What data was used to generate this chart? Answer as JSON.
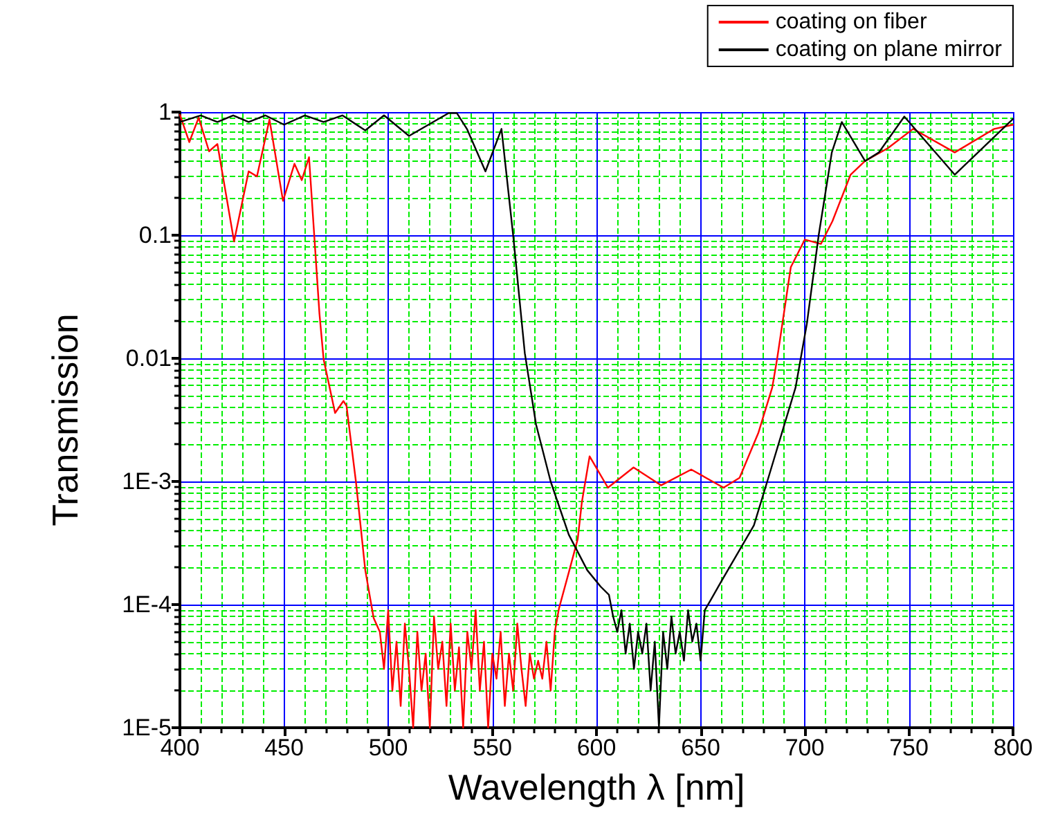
{
  "chart_data": {
    "type": "line",
    "xlabel": "Wavelength λ [nm]",
    "ylabel": "Transmission",
    "log": "y",
    "grid": true,
    "legend": "top right",
    "marker": "none",
    "line_style": "solid",
    "xlim": [
      400,
      800
    ],
    "xticks": [
      400,
      {
        "value": 410,
        "label": null
      },
      {
        "value": 420,
        "label": null
      },
      {
        "value": 430,
        "label": null
      },
      {
        "value": 440,
        "label": null
      },
      450,
      {
        "value": 460,
        "label": null
      },
      {
        "value": 470,
        "label": null
      },
      {
        "value": 480,
        "label": null
      },
      {
        "value": 490,
        "label": null
      },
      500,
      {
        "value": 510,
        "label": null
      },
      {
        "value": 520,
        "label": null
      },
      {
        "value": 530,
        "label": null
      },
      {
        "value": 540,
        "label": null
      },
      550,
      {
        "value": 560,
        "label": null
      },
      {
        "value": 570,
        "label": null
      },
      {
        "value": 580,
        "label": null
      },
      {
        "value": 590,
        "label": null
      },
      600,
      {
        "value": 610,
        "label": null
      },
      {
        "value": 620,
        "label": null
      },
      {
        "value": 630,
        "label": null
      },
      {
        "value": 640,
        "label": null
      },
      650,
      {
        "value": 660,
        "label": null
      },
      {
        "value": 670,
        "label": null
      },
      {
        "value": 680,
        "label": null
      },
      {
        "value": 690,
        "label": null
      },
      700,
      {
        "value": 710,
        "label": null
      },
      {
        "value": 720,
        "label": null
      },
      {
        "value": 730,
        "label": null
      },
      {
        "value": 740,
        "label": null
      },
      750,
      {
        "value": 760,
        "label": null
      },
      {
        "value": 770,
        "label": null
      },
      {
        "value": 780,
        "label": null
      },
      {
        "value": 790,
        "label": null
      },
      800
    ],
    "ylim": [
      1e-05,
      1
    ],
    "yticks": [
      {
        "value": 1e-05,
        "label": "1E-5"
      },
      {
        "value": 2e-05,
        "label": null
      },
      {
        "value": 3e-05,
        "label": null
      },
      {
        "value": 4e-05,
        "label": null
      },
      {
        "value": 5e-05,
        "label": null
      },
      {
        "value": 6e-05,
        "label": null
      },
      {
        "value": 7e-05,
        "label": null
      },
      {
        "value": 8e-05,
        "label": null
      },
      {
        "value": 9e-05,
        "label": null
      },
      {
        "value": 0.0001,
        "label": "1E-4"
      },
      {
        "value": 0.0002,
        "label": null
      },
      {
        "value": 0.0003,
        "label": null
      },
      {
        "value": 0.0004,
        "label": null
      },
      {
        "value": 0.0005,
        "label": null
      },
      {
        "value": 0.0006,
        "label": null
      },
      {
        "value": 0.0007,
        "label": null
      },
      {
        "value": 0.0008,
        "label": null
      },
      {
        "value": 0.0009,
        "label": null
      },
      {
        "value": 0.001,
        "label": "1E-3"
      },
      {
        "value": 0.002,
        "label": null
      },
      {
        "value": 0.003,
        "label": null
      },
      {
        "value": 0.004,
        "label": null
      },
      {
        "value": 0.005,
        "label": null
      },
      {
        "value": 0.006,
        "label": null
      },
      {
        "value": 0.007,
        "label": null
      },
      {
        "value": 0.008,
        "label": null
      },
      {
        "value": 0.009,
        "label": null
      },
      0.01,
      {
        "value": 0.02,
        "label": null
      },
      {
        "value": 0.03,
        "label": null
      },
      {
        "value": 0.04,
        "label": null
      },
      {
        "value": 0.05,
        "label": null
      },
      {
        "value": 0.06,
        "label": null
      },
      {
        "value": 0.07,
        "label": null
      },
      {
        "value": 0.08,
        "label": null
      },
      {
        "value": 0.09,
        "label": null
      },
      0.1,
      {
        "value": 0.2,
        "label": null
      },
      {
        "value": 0.3,
        "label": null
      },
      {
        "value": 0.4,
        "label": null
      },
      {
        "value": 0.5,
        "label": null
      },
      {
        "value": 0.6,
        "label": null
      },
      {
        "value": 0.7,
        "label": null
      },
      {
        "value": 0.8,
        "label": null
      },
      {
        "value": 0.9,
        "label": null
      },
      1
    ],
    "series": [
      {
        "name": "coating on fiber",
        "color": "#ff0000",
        "x": [
          400,
          404.5,
          409,
          414,
          418,
          426,
          433,
          437,
          443,
          449.5,
          455,
          458.5,
          462,
          467,
          469,
          474.5,
          478.5,
          480,
          484.5,
          489,
          493,
          496,
          498,
          500,
          502,
          504,
          506,
          508,
          510,
          512,
          514,
          516,
          518,
          520,
          522,
          524,
          526,
          528,
          530,
          532,
          534,
          536,
          538,
          540,
          542,
          544,
          546,
          548,
          550,
          552,
          554,
          556,
          558,
          560,
          562,
          564,
          566,
          568,
          570,
          572,
          574,
          576,
          578,
          580,
          582,
          587,
          591,
          593,
          596.7,
          605.5,
          617.8,
          631,
          645.5,
          661,
          668.7,
          677.8,
          684.4,
          686.7,
          693.3,
          700,
          707.8,
          713.3,
          722,
          728.9,
          740,
          752,
          772,
          791,
          800
        ],
        "values": [
          0.95,
          0.57,
          0.9,
          0.48,
          0.55,
          0.089,
          0.33,
          0.3,
          0.87,
          0.19,
          0.38,
          0.28,
          0.43,
          0.023,
          0.0098,
          0.0036,
          0.0045,
          0.0041,
          0.001,
          0.00019,
          7.8e-05,
          6e-05,
          3e-05,
          9e-05,
          2e-05,
          5e-05,
          1.5e-05,
          7e-05,
          3e-05,
          1e-05,
          6e-05,
          2e-05,
          4e-05,
          1e-05,
          8e-05,
          3e-05,
          5e-05,
          1.5e-05,
          7e-05,
          2e-05,
          4.5e-05,
          1e-05,
          6e-05,
          3e-05,
          9e-05,
          2e-05,
          5e-05,
          1e-05,
          4e-05,
          2.5e-05,
          6e-05,
          1.5e-05,
          4e-05,
          2e-05,
          7e-05,
          3e-05,
          1.5e-05,
          4e-05,
          2.5e-05,
          3.5e-05,
          2.5e-05,
          5e-05,
          2e-05,
          6e-05,
          9.3e-05,
          0.00019,
          0.00034,
          0.00068,
          0.0016,
          0.00089,
          0.0013,
          0.00093,
          0.00125,
          0.00089,
          0.00107,
          0.0025,
          0.0058,
          0.0098,
          0.055,
          0.092,
          0.085,
          0.13,
          0.31,
          0.4,
          0.51,
          0.73,
          0.47,
          0.73,
          0.79
        ]
      },
      {
        "name": "coating on plane mirror",
        "color": "#000000",
        "x": [
          400,
          410,
          418,
          425.6,
          433,
          441,
          450,
          460,
          469,
          478,
          489,
          498,
          510,
          529,
          533,
          537.8,
          546.7,
          554.4,
          560,
          565.6,
          571,
          578,
          586.7,
          595.6,
          602,
          606,
          608,
          610,
          612,
          614,
          616,
          618,
          620,
          622,
          624,
          626,
          628,
          630,
          632,
          634,
          636,
          638,
          640,
          642,
          644,
          646,
          648,
          650,
          652,
          655,
          660,
          675.6,
          682,
          695.6,
          701,
          706.7,
          713,
          717.8,
          729,
          735.6,
          747.8,
          772,
          800
        ],
        "values": [
          0.83,
          0.94,
          0.83,
          0.94,
          0.83,
          0.94,
          0.79,
          0.94,
          0.83,
          0.94,
          0.71,
          0.94,
          0.64,
          0.98,
          0.98,
          0.73,
          0.33,
          0.73,
          0.1,
          0.011,
          0.0029,
          0.001,
          0.00037,
          0.00019,
          0.00014,
          0.00012,
          8e-05,
          6e-05,
          9e-05,
          4e-05,
          7e-05,
          3e-05,
          6e-05,
          4e-05,
          7e-05,
          2e-05,
          5e-05,
          1e-05,
          6e-05,
          3e-05,
          8e-05,
          4e-05,
          6e-05,
          3.5e-05,
          9e-05,
          5e-05,
          7e-05,
          3.5e-05,
          9e-05,
          0.00011,
          0.000155,
          0.00044,
          0.001,
          0.0058,
          0.019,
          0.1,
          0.47,
          0.83,
          0.4,
          0.47,
          0.92,
          0.31,
          0.88
        ]
      }
    ]
  }
}
